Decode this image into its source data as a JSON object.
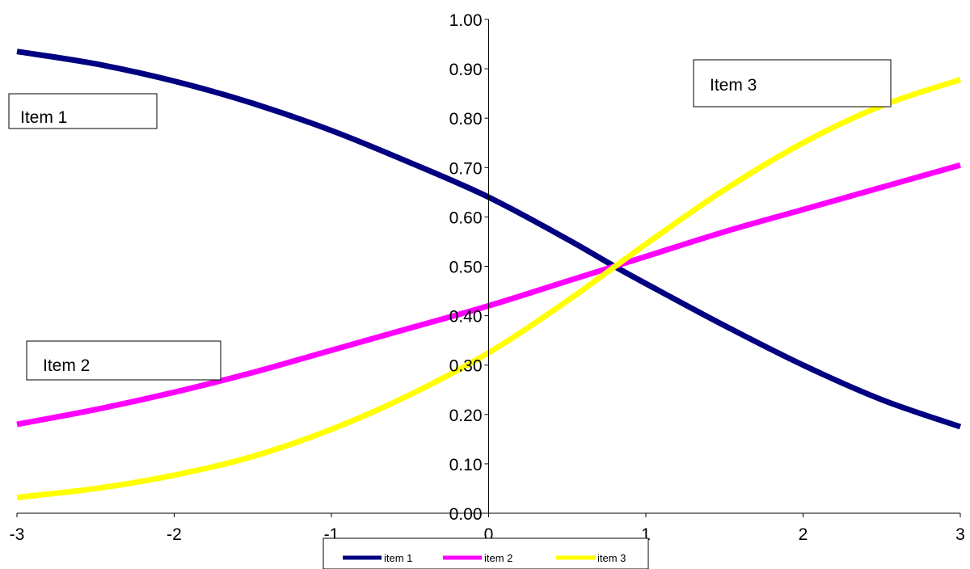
{
  "chart_data": {
    "type": "line",
    "x_range": [
      -3,
      3
    ],
    "y_range": [
      0,
      1
    ],
    "x_ticks": [
      "-3",
      "-2",
      "-1",
      "0",
      "1",
      "2",
      "3"
    ],
    "y_ticks": [
      "0.00",
      "0.10",
      "0.20",
      "0.30",
      "0.40",
      "0.50",
      "0.60",
      "0.70",
      "0.80",
      "0.90",
      "1.00"
    ],
    "grid": false,
    "legend_position": "bottom",
    "series": [
      {
        "name": "item 1",
        "color": "#000080",
        "x": [
          -3,
          -2.5,
          -2,
          -1.5,
          -1,
          -0.5,
          0,
          0.5,
          0.8,
          1,
          1.5,
          2,
          2.5,
          3
        ],
        "y": [
          0.935,
          0.91,
          0.875,
          0.83,
          0.775,
          0.71,
          0.64,
          0.555,
          0.5,
          0.465,
          0.38,
          0.3,
          0.23,
          0.175
        ]
      },
      {
        "name": "item 2",
        "color": "#FF00FF",
        "x": [
          -3,
          -2.5,
          -2,
          -1.5,
          -1,
          -0.5,
          0,
          0.5,
          1,
          1.5,
          2,
          2.5,
          3
        ],
        "y": [
          0.18,
          0.21,
          0.245,
          0.285,
          0.33,
          0.375,
          0.42,
          0.47,
          0.52,
          0.57,
          0.615,
          0.66,
          0.705
        ]
      },
      {
        "name": "item 3",
        "color": "#FFFF00",
        "x": [
          -3,
          -2.5,
          -2,
          -1.5,
          -1,
          -0.5,
          0,
          0.5,
          1,
          1.5,
          2,
          2.5,
          3
        ],
        "y": [
          0.032,
          0.05,
          0.077,
          0.115,
          0.17,
          0.24,
          0.325,
          0.43,
          0.545,
          0.655,
          0.75,
          0.825,
          0.878
        ]
      }
    ],
    "annotations": [
      {
        "text": "Item 1"
      },
      {
        "text": "Item 2"
      },
      {
        "text": "Item 3"
      }
    ]
  }
}
